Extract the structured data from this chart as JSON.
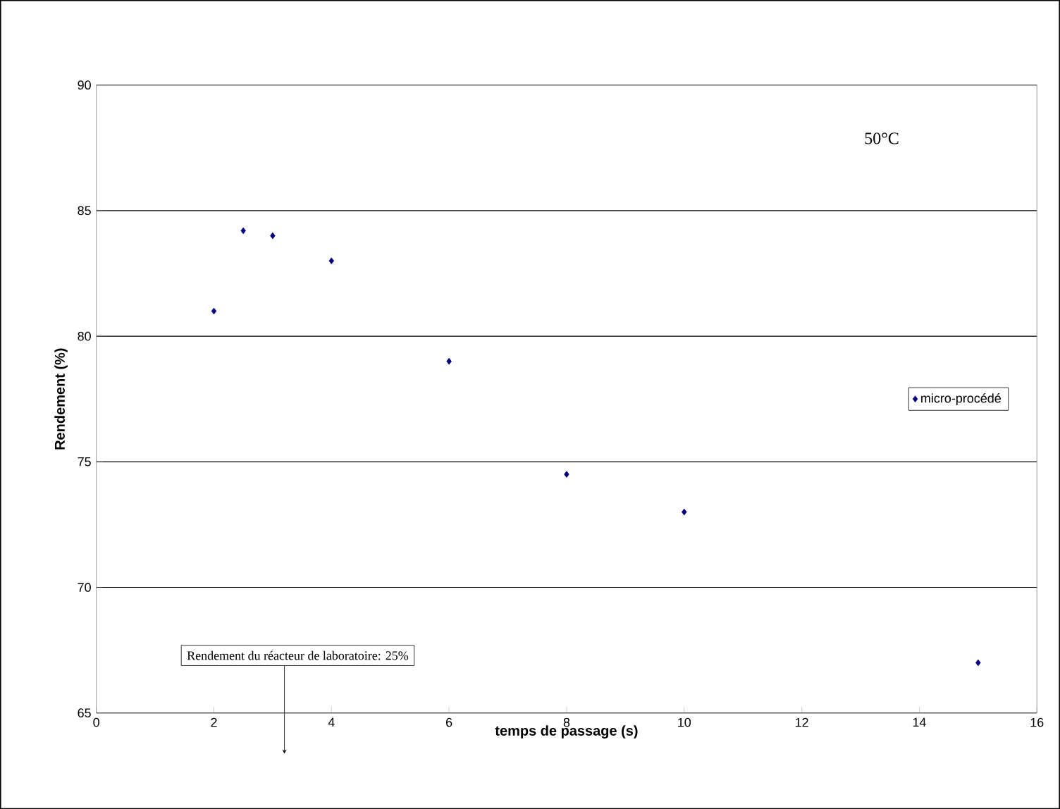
{
  "chart_data": {
    "type": "scatter",
    "xlabel": "temps de passage (s)",
    "ylabel": "Rendement (%)",
    "x": [
      2,
      2.5,
      3,
      4,
      6,
      8,
      10,
      15
    ],
    "series": [
      {
        "name": "micro-procédé",
        "color": "#000080",
        "values": [
          81,
          84.2,
          84,
          83,
          79,
          74.5,
          73,
          67
        ]
      }
    ],
    "xlim": [
      0,
      16
    ],
    "xticks": [
      0,
      2,
      4,
      6,
      8,
      10,
      12,
      14,
      16
    ],
    "ylim": [
      65,
      90
    ],
    "yticks": [
      65,
      70,
      75,
      80,
      85,
      90
    ],
    "grid": "y",
    "legend": "right",
    "marker": "diamond",
    "annotations": [
      "50°C",
      "Rendement du réacteur de laboratoire: 25%"
    ]
  }
}
